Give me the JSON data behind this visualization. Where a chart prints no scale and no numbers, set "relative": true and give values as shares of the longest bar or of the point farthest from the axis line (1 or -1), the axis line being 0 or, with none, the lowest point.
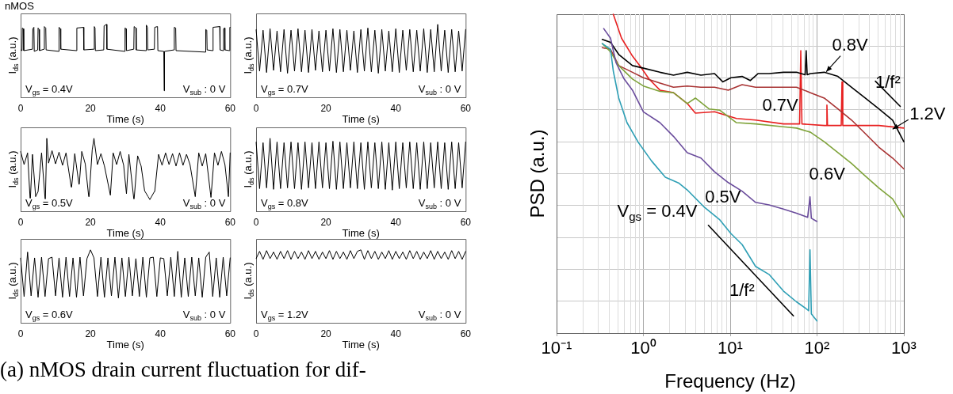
{
  "chart_data": [
    {
      "type": "line",
      "title": "nMOS",
      "xlabel": "Time (s)",
      "ylabel": "I$_{ds}$ (a.u.)",
      "relative": true,
      "tick_labels": "x",
      "xlim": [
        0,
        60
      ],
      "xticks": [
        0,
        20,
        40,
        60
      ],
      "color": "#000000",
      "annotations": [
        "V$_{gs}$ = 0.4V",
        "V$_{sub}$ : 0 V"
      ],
      "x": [
        0,
        0.4,
        0.5,
        0.8,
        0.9,
        3.4,
        3.5,
        3.8,
        3.9,
        4.9,
        5.0,
        5.3,
        5.4,
        6.7,
        6.8,
        7.2,
        7.3,
        10.9,
        11.0,
        11.4,
        11.5,
        16.0,
        16.1,
        18.0,
        18.1,
        21.0,
        21.1,
        21.3,
        21.4,
        23.8,
        23.9,
        24.6,
        24.7,
        29.8,
        29.9,
        30.2,
        30.3,
        32.4,
        32.5,
        33.0,
        33.1,
        35.9,
        36.0,
        36.3,
        36.4,
        38.3,
        38.4,
        39.2,
        39.3,
        41.0,
        41.1,
        41.2,
        43.9,
        44.0,
        44.4,
        44.5,
        52.9,
        53.0,
        53.3,
        53.4,
        55.0,
        55.1,
        57.0,
        57.1,
        58.0,
        58.1,
        58.4,
        58.5,
        59.8,
        59.9,
        60
      ],
      "values": [
        0.65,
        0.64,
        0.95,
        0.94,
        0.64,
        0.66,
        0.94,
        0.96,
        0.63,
        0.65,
        0.95,
        0.93,
        0.64,
        0.66,
        0.97,
        0.95,
        0.65,
        0.63,
        0.96,
        0.94,
        0.66,
        0.64,
        0.95,
        0.96,
        0.65,
        0.66,
        0.97,
        0.95,
        0.64,
        0.65,
        0.98,
        1.0,
        0.66,
        0.63,
        0.95,
        0.94,
        0.64,
        0.66,
        0.97,
        0.95,
        0.65,
        0.64,
        0.99,
        0.96,
        0.65,
        0.66,
        0.96,
        0.97,
        0.64,
        0.63,
        0.09,
        0.63,
        0.65,
        0.96,
        0.95,
        0.64,
        0.62,
        0.93,
        0.92,
        0.65,
        0.64,
        0.96,
        0.97,
        0.65,
        0.64,
        0.94,
        0.95,
        0.65,
        0.64,
        0.96,
        0.96
      ]
    },
    {
      "type": "line",
      "xlabel": "Time (s)",
      "ylabel": "I$_{ds}$ (a.u.)",
      "relative": true,
      "tick_labels": "x",
      "xlim": [
        0,
        60
      ],
      "xticks": [
        0,
        20,
        40,
        60
      ],
      "color": "#000000",
      "annotations": [
        "V$_{gs}$ = 0.7V",
        "V$_{sub}$ : 0 V"
      ],
      "x": [
        0,
        1,
        2,
        3,
        4,
        5,
        6,
        7,
        8,
        9,
        10,
        11,
        12,
        13,
        14,
        15,
        16,
        17,
        18,
        19,
        20,
        21,
        22,
        23,
        24,
        25,
        26,
        27,
        28,
        29,
        30,
        31,
        32,
        33,
        34,
        35,
        36,
        37,
        38,
        39,
        40,
        41,
        42,
        43,
        44,
        45,
        46,
        47,
        48,
        49,
        50,
        51,
        52,
        53,
        54,
        55,
        56,
        57,
        58,
        59,
        60
      ],
      "values": [
        0.93,
        0.36,
        0.92,
        0.34,
        0.94,
        0.37,
        0.91,
        0.35,
        0.93,
        0.33,
        0.92,
        0.36,
        0.94,
        0.35,
        0.92,
        0.34,
        0.93,
        0.37,
        0.91,
        0.35,
        0.92,
        0.36,
        0.94,
        0.34,
        0.93,
        0.35,
        0.92,
        0.37,
        0.91,
        0.34,
        0.93,
        0.36,
        0.95,
        0.35,
        0.92,
        0.33,
        0.93,
        0.36,
        0.91,
        0.35,
        0.94,
        0.34,
        0.92,
        0.37,
        0.93,
        0.35,
        0.92,
        0.36,
        0.94,
        0.34,
        0.93,
        0.35,
        1.0,
        0.36,
        0.92,
        0.34,
        0.93,
        0.35,
        0.91,
        0.36,
        0.93
      ]
    },
    {
      "type": "line",
      "xlabel": "Time (s)",
      "ylabel": "I$_{ds}$ (a.u.)",
      "relative": true,
      "tick_labels": "x",
      "xlim": [
        0,
        60
      ],
      "xticks": [
        0,
        20,
        40,
        60
      ],
      "color": "#000000",
      "annotations": [
        "V$_{gs}$ = 0.5V",
        "V$_{sub}$ : 0 V"
      ],
      "x": [
        0,
        1,
        2,
        2.7,
        2.8,
        3.4,
        4.3,
        5,
        6,
        7,
        7.1,
        7.5,
        7.6,
        8,
        9,
        10,
        11,
        12,
        13,
        14.5,
        14.6,
        15.5,
        16.7,
        16.8,
        17.5,
        18.5,
        19.5,
        19.6,
        20.5,
        21,
        21.1,
        22,
        23,
        24,
        25.7,
        25.8,
        26.5,
        27.5,
        28.5,
        29.5,
        30.3,
        30.4,
        31,
        32.4,
        32.5,
        33.5,
        34.5,
        35.5,
        36.5,
        37,
        38.3,
        38.4,
        39.5,
        40.5,
        41.5,
        42.5,
        43.5,
        44.5,
        45.5,
        46.5,
        47.5,
        48.5,
        50,
        50.1,
        51,
        52,
        53,
        54.5,
        54.6,
        55.5,
        56.5,
        57.5,
        58.5,
        59.5,
        59.6,
        60
      ],
      "values": [
        0.82,
        0.64,
        0.8,
        0.18,
        0.18,
        0.78,
        0.2,
        0.27,
        0.8,
        0.17,
        0.17,
        1.0,
        1.0,
        0.66,
        0.83,
        0.65,
        0.81,
        0.63,
        0.8,
        0.33,
        0.33,
        0.79,
        0.37,
        0.37,
        0.82,
        0.65,
        0.2,
        0.2,
        0.84,
        1.0,
        1.0,
        0.64,
        0.79,
        0.62,
        0.22,
        0.22,
        0.8,
        0.64,
        0.82,
        0.63,
        0.24,
        0.24,
        0.78,
        0.17,
        0.17,
        0.76,
        0.62,
        0.28,
        0.2,
        0.16,
        0.27,
        0.27,
        0.78,
        0.63,
        0.8,
        0.64,
        0.79,
        0.62,
        0.8,
        0.63,
        0.78,
        0.64,
        0.2,
        0.2,
        0.8,
        0.62,
        0.79,
        0.19,
        0.19,
        0.8,
        0.63,
        0.82,
        0.64,
        0.2,
        0.2,
        0.8
      ]
    },
    {
      "type": "line",
      "xlabel": "Time (s)",
      "ylabel": "I$_{ds}$ (a.u.)",
      "relative": true,
      "tick_labels": "x",
      "xlim": [
        0,
        60
      ],
      "xticks": [
        0,
        20,
        40,
        60
      ],
      "color": "#000000",
      "annotations": [
        "V$_{gs}$ = 0.8V",
        "V$_{sub}$ : 0 V"
      ],
      "x": [
        0,
        1,
        2,
        3,
        4,
        5,
        6,
        7,
        8,
        9,
        10,
        11,
        12,
        13,
        14,
        15,
        16,
        17,
        18,
        19,
        20,
        21,
        22,
        23,
        24,
        25,
        26,
        27,
        28,
        29,
        30,
        31,
        32,
        33,
        34,
        35,
        36,
        37,
        38,
        39,
        40,
        41,
        42,
        43,
        44,
        45,
        46,
        47,
        48,
        49,
        50,
        51,
        52,
        53,
        54,
        55,
        56,
        57,
        58,
        59,
        60
      ],
      "values": [
        0.95,
        0.31,
        0.94,
        0.32,
        1.0,
        0.3,
        0.95,
        0.31,
        0.94,
        0.32,
        0.95,
        0.31,
        0.94,
        0.3,
        0.95,
        0.32,
        0.94,
        0.31,
        0.95,
        0.32,
        0.94,
        0.31,
        0.96,
        0.3,
        0.95,
        0.31,
        0.94,
        0.32,
        0.95,
        0.31,
        0.94,
        0.3,
        0.95,
        0.32,
        0.94,
        0.31,
        0.95,
        0.3,
        0.94,
        0.29,
        0.95,
        0.31,
        0.94,
        0.32,
        0.95,
        0.31,
        0.94,
        0.3,
        0.95,
        0.31,
        0.94,
        0.32,
        0.95,
        0.31,
        0.94,
        0.3,
        0.95,
        0.31,
        0.94,
        0.32,
        0.95
      ]
    },
    {
      "type": "line",
      "xlabel": "Time (s)",
      "ylabel": "I$_{ds}$ (a.u.)",
      "relative": true,
      "tick_labels": "x",
      "xlim": [
        0,
        60
      ],
      "xticks": [
        0,
        20,
        40,
        60
      ],
      "color": "#000000",
      "annotations": [
        "V$_{gs}$ = 0.6V",
        "V$_{sub}$ : 0 V"
      ],
      "x": [
        0,
        1,
        2,
        3,
        4,
        5,
        6,
        7,
        8,
        9,
        10,
        11,
        12,
        13,
        14,
        15,
        16,
        17,
        18,
        19,
        20,
        21,
        22,
        23,
        24,
        25,
        26,
        27,
        28,
        29,
        30,
        31,
        32,
        33,
        34,
        35,
        36,
        37,
        38,
        39,
        40,
        41,
        42,
        43,
        44,
        45,
        46,
        47,
        48,
        49,
        50,
        51,
        52,
        53,
        54,
        55,
        56,
        57,
        58,
        59,
        60
      ],
      "values": [
        0.89,
        0.36,
        0.97,
        0.37,
        0.89,
        0.35,
        0.9,
        0.36,
        0.88,
        0.9,
        0.37,
        0.89,
        0.35,
        0.9,
        0.36,
        0.89,
        0.35,
        0.9,
        0.37,
        0.88,
        1.0,
        0.89,
        0.36,
        0.9,
        0.35,
        0.89,
        0.37,
        0.9,
        0.34,
        0.89,
        0.36,
        0.9,
        0.37,
        0.88,
        0.36,
        0.9,
        0.35,
        0.89,
        0.9,
        0.36,
        0.89,
        0.88,
        0.37,
        0.9,
        0.36,
        0.98,
        0.35,
        0.89,
        0.36,
        0.9,
        0.37,
        0.89,
        0.35,
        0.9,
        0.97,
        0.36,
        0.89,
        0.35,
        0.9,
        0.37,
        0.89
      ]
    },
    {
      "type": "line",
      "xlabel": "Time (s)",
      "ylabel": "I$_{ds}$ (a.u.)",
      "relative": true,
      "tick_labels": "x",
      "xlim": [
        0,
        60
      ],
      "xticks": [
        0,
        20,
        40,
        60
      ],
      "color": "#000000",
      "annotations": [
        "V$_{gs}$ = 1.2V",
        "V$_{sub}$ : 0 V"
      ],
      "x": [
        0,
        1,
        2,
        3,
        4,
        5,
        6,
        7,
        8,
        9,
        10,
        11,
        12,
        13,
        14,
        15,
        16,
        17,
        18,
        19,
        20,
        21,
        22,
        23,
        24,
        25,
        26,
        27,
        28,
        29,
        30,
        31,
        32,
        33,
        34,
        35,
        36,
        37,
        38,
        39,
        40,
        41,
        42,
        43,
        44,
        45,
        46,
        47,
        48,
        49,
        50,
        51,
        52,
        53,
        54,
        55,
        56,
        57,
        58,
        59,
        60
      ],
      "values": [
        0.88,
        0.98,
        0.87,
        0.99,
        0.88,
        0.97,
        0.87,
        0.98,
        0.88,
        0.99,
        0.87,
        0.98,
        0.88,
        0.97,
        0.87,
        0.99,
        0.88,
        0.98,
        0.87,
        0.97,
        0.88,
        0.99,
        0.87,
        0.98,
        0.88,
        0.97,
        0.87,
        0.99,
        0.88,
        0.98,
        1.0,
        0.87,
        0.99,
        0.88,
        0.98,
        0.87,
        0.97,
        0.88,
        0.99,
        0.87,
        0.98,
        0.88,
        0.97,
        0.87,
        0.99,
        0.88,
        0.98,
        0.87,
        0.97,
        0.88,
        0.99,
        0.87,
        0.98,
        0.88,
        0.97,
        0.87,
        0.99,
        0.88,
        0.98,
        0.87,
        0.98
      ]
    },
    {
      "type": "line",
      "xlabel": "Frequency (Hz)",
      "ylabel": "PSD (a.u.)",
      "relative": true,
      "log": "x",
      "grid": true,
      "tick_labels": "x",
      "xlim": [
        0.1,
        1000
      ],
      "xticks": [
        {
          "value": 0.1,
          "label": "10⁻¹"
        },
        {
          "value": 1,
          "label": "10⁰"
        },
        {
          "value": 10,
          "label": "10¹"
        },
        {
          "value": 100,
          "label": "10²"
        },
        {
          "value": 1000,
          "label": "10³"
        }
      ],
      "series": [
        {
          "color": "#2e9fb5",
          "x": [
            0.336,
            0.418,
            0.45,
            0.52,
            0.647,
            0.865,
            1.24,
            1.79,
            2.57,
            3.2,
            4.94,
            7.6,
            10.2,
            13.7,
            19.6,
            28,
            41,
            58,
            78,
            80,
            83,
            86,
            100
          ],
          "values": [
            0.908,
            0.89,
            0.822,
            0.737,
            0.66,
            0.6,
            0.54,
            0.489,
            0.47,
            0.449,
            0.397,
            0.355,
            0.312,
            0.278,
            0.209,
            0.184,
            0.132,
            0.098,
            0.073,
            0.07,
            0.261,
            0.06,
            0.038
          ]
        },
        {
          "color": "#6a4c9c",
          "x": [
            0.349,
            0.418,
            0.484,
            0.6,
            0.748,
            1,
            1.55,
            2.22,
            3.2,
            4.6,
            6.6,
            9.5,
            13.7,
            19.6,
            28,
            41,
            58,
            78,
            83,
            86,
            100
          ],
          "values": [
            0.955,
            0.925,
            0.848,
            0.797,
            0.762,
            0.694,
            0.66,
            0.617,
            0.566,
            0.549,
            0.506,
            0.472,
            0.445,
            0.41,
            0.402,
            0.389,
            0.376,
            0.363,
            0.427,
            0.36,
            0.35
          ]
        },
        {
          "color": "#7fa33a",
          "x": [
            0.336,
            0.418,
            0.52,
            0.748,
            1,
            1.55,
            2.22,
            3.2,
            3.97,
            5.7,
            7.6,
            11.8,
            19.6,
            41,
            58,
            84,
            121,
            174,
            250,
            359,
            516,
            742,
            1000
          ],
          "values": [
            0.908,
            0.882,
            0.839,
            0.797,
            0.775,
            0.758,
            0.754,
            0.72,
            0.737,
            0.703,
            0.699,
            0.66,
            0.656,
            0.647,
            0.643,
            0.63,
            0.6,
            0.566,
            0.532,
            0.493,
            0.455,
            0.421,
            0.363
          ]
        },
        {
          "color": "#a83232",
          "x": [
            0.336,
            0.418,
            0.52,
            0.748,
            1,
            1.55,
            2.22,
            3.2,
            4.6,
            6.6,
            9.5,
            13.7,
            19.6,
            28,
            41,
            58,
            84,
            121,
            174,
            250,
            359,
            516,
            742,
            1000
          ],
          "values": [
            0.895,
            0.89,
            0.839,
            0.818,
            0.801,
            0.784,
            0.771,
            0.775,
            0.771,
            0.771,
            0.762,
            0.779,
            0.771,
            0.771,
            0.771,
            0.771,
            0.754,
            0.737,
            0.703,
            0.668,
            0.626,
            0.583,
            0.549,
            0.515
          ]
        },
        {
          "color": "#000000",
          "x": [
            0.336,
            0.418,
            0.52,
            0.748,
            1,
            1.55,
            2.22,
            3.2,
            4.6,
            6.6,
            8.2,
            10.2,
            13.7,
            17,
            21,
            28,
            41,
            58,
            73,
            75,
            77,
            84,
            121,
            174,
            250,
            359,
            516,
            742,
            1000
          ],
          "values": [
            0.921,
            0.912,
            0.874,
            0.839,
            0.831,
            0.818,
            0.809,
            0.818,
            0.809,
            0.814,
            0.788,
            0.801,
            0.805,
            0.792,
            0.814,
            0.814,
            0.818,
            0.818,
            0.81,
            0.886,
            0.81,
            0.814,
            0.818,
            0.805,
            0.771,
            0.737,
            0.703,
            0.668,
            0.6
          ]
        },
        {
          "color": "#e82020",
          "x": [
            0.45,
            0.56,
            0.748,
            0.93,
            1.16,
            1.55,
            2.22,
            3.2,
            3.97,
            6.6,
            11.8,
            19.6,
            41,
            58,
            63,
            65,
            67,
            121,
            128,
            130,
            132,
            190,
            194,
            198,
            359,
            516,
            1000
          ],
          "values": [
            1.0,
            0.925,
            0.869,
            0.835,
            0.797,
            0.762,
            0.754,
            0.72,
            0.69,
            0.694,
            0.673,
            0.668,
            0.656,
            0.656,
            0.656,
            0.886,
            0.656,
            0.651,
            0.651,
            0.715,
            0.651,
            0.651,
            0.788,
            0.651,
            0.651,
            0.651,
            0.643
          ]
        },
        {
          "type": "line",
          "color": "#000000",
          "x": [
            5.6,
            53.5
          ],
          "values": [
            0.338,
            0.054
          ]
        },
        {
          "type": "line",
          "color": "#000000",
          "x": [
            470,
            910
          ],
          "values": [
            0.79,
            0.711
          ]
        }
      ],
      "annotations": [
        "0.8V",
        "0.7V",
        "0.6V",
        "0.5V",
        "V$_{gs}$ = 0.4V",
        "1/f²",
        "1/f²",
        "1.2V"
      ]
    },
    {
      "type": "other",
      "title": "(a)  nMOS drain current fluctuation for dif-"
    }
  ]
}
